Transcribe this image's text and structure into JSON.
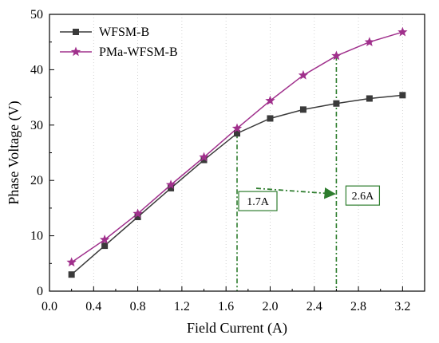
{
  "chart_data": {
    "type": "line",
    "title": "",
    "xlabel": "Field Current (A)",
    "ylabel": "Phase Voltage (V)",
    "xlim": [
      0.0,
      3.4
    ],
    "ylim": [
      0,
      50
    ],
    "xticks": [
      0.0,
      0.4,
      0.8,
      1.2,
      1.6,
      2.0,
      2.4,
      2.8,
      3.2
    ],
    "xtick_labels": [
      "0.0",
      "0.4",
      "0.8",
      "1.2",
      "1.6",
      "2.0",
      "2.4",
      "2.8",
      "3.2"
    ],
    "yticks": [
      0,
      10,
      20,
      30,
      40,
      50
    ],
    "ytick_labels": [
      "0",
      "10",
      "20",
      "30",
      "40",
      "50"
    ],
    "grid": "vertical dotted",
    "legend_position": "top-left",
    "series": [
      {
        "name": "WFSM-B",
        "color": "#3a3a3a",
        "marker": "square",
        "x": [
          0.2,
          0.5,
          0.8,
          1.1,
          1.4,
          1.7,
          2.0,
          2.3,
          2.6,
          2.9,
          3.2
        ],
        "y": [
          3.0,
          8.2,
          13.4,
          18.6,
          23.7,
          28.5,
          31.2,
          32.8,
          33.9,
          34.8,
          35.4
        ]
      },
      {
        "name": "PMa-WFSM-B",
        "color": "#a0308c",
        "marker": "star",
        "x": [
          0.2,
          0.5,
          0.8,
          1.1,
          1.4,
          1.7,
          2.0,
          2.3,
          2.6,
          2.9,
          3.2
        ],
        "y": [
          5.2,
          9.3,
          14.0,
          19.2,
          24.2,
          29.4,
          34.4,
          39.0,
          42.5,
          45.0,
          46.8
        ]
      }
    ],
    "annotations": [
      {
        "label": "1.7A",
        "x": 1.7,
        "y": 28.5,
        "color": "#2e7d2e"
      },
      {
        "label": "2.6A",
        "x": 2.6,
        "y": 42.5,
        "color": "#2e7d2e"
      }
    ]
  }
}
